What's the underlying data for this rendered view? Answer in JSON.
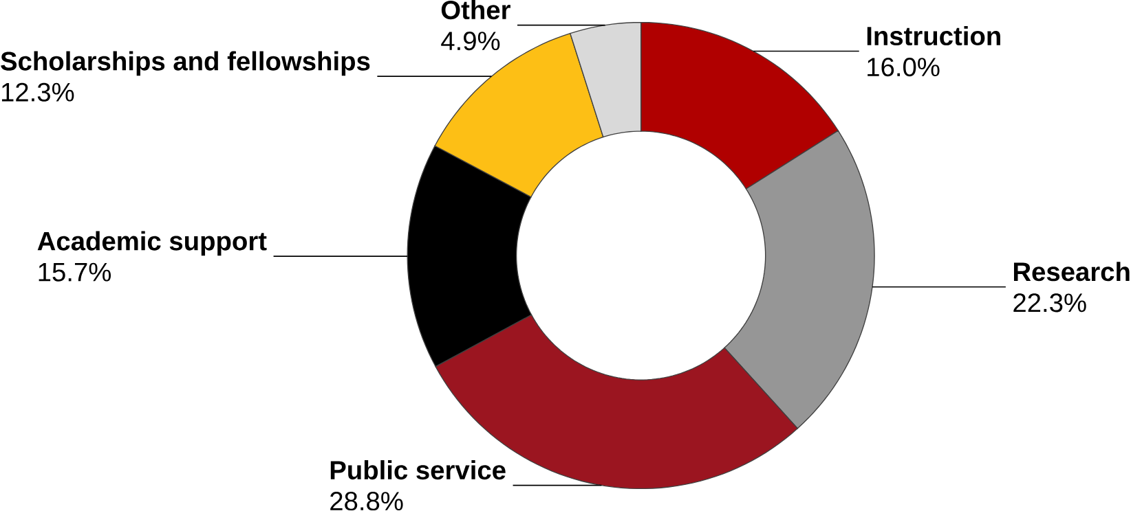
{
  "chart_data": {
    "type": "donut",
    "categories": [
      "Instruction",
      "Research",
      "Public service",
      "Academic support",
      "Scholarships and fellowships",
      "Other"
    ],
    "values": [
      16.0,
      22.3,
      28.8,
      15.7,
      12.3,
      4.9
    ],
    "value_labels": [
      "16.0%",
      "22.3%",
      "28.8%",
      "15.7%",
      "12.3%",
      "4.9%"
    ],
    "colors": [
      "#b00000",
      "#969696",
      "#9b1520",
      "#000000",
      "#fdbf15",
      "#d9d9d9"
    ]
  }
}
